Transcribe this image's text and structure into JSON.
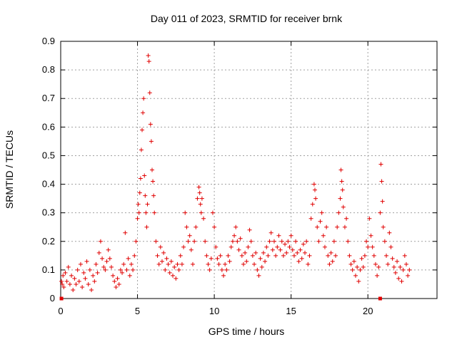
{
  "chart_data": {
    "type": "scatter",
    "title": "Day 011 of 2023, SRMTID for receiver brnk",
    "xlabel": "GPS time / hours",
    "ylabel": "SRMTID / TECUs",
    "xlim": [
      0,
      24.5
    ],
    "ylim": [
      0,
      0.9
    ],
    "xticks": [
      0,
      5,
      10,
      15,
      20
    ],
    "yticks": [
      0,
      0.1,
      0.2,
      0.3,
      0.4,
      0.5,
      0.6,
      0.7,
      0.8,
      0.9
    ],
    "xtick_labels": [
      "0",
      "5",
      "10",
      "15",
      "20"
    ],
    "ytick_labels": [
      "0",
      "0.1",
      "0.2",
      "0.3",
      "0.4",
      "0.5",
      "0.6",
      "0.7",
      "0.8",
      "0.9"
    ],
    "grid": true,
    "marker": "plus",
    "color": "#e00000",
    "baseline_markers_x": [
      0.05,
      20.8
    ],
    "series": [
      {
        "name": "SRMTID",
        "points": [
          [
            0.05,
            0.06
          ],
          [
            0.1,
            0.05
          ],
          [
            0.15,
            0.08
          ],
          [
            0.2,
            0.04
          ],
          [
            0.3,
            0.09
          ],
          [
            0.4,
            0.06
          ],
          [
            0.5,
            0.11
          ],
          [
            0.6,
            0.05
          ],
          [
            0.7,
            0.08
          ],
          [
            0.8,
            0.03
          ],
          [
            0.9,
            0.07
          ],
          [
            1.0,
            0.05
          ],
          [
            1.1,
            0.1
          ],
          [
            1.2,
            0.06
          ],
          [
            1.3,
            0.12
          ],
          [
            1.4,
            0.04
          ],
          [
            1.5,
            0.09
          ],
          [
            1.6,
            0.07
          ],
          [
            1.7,
            0.13
          ],
          [
            1.8,
            0.05
          ],
          [
            1.9,
            0.1
          ],
          [
            2.0,
            0.03
          ],
          [
            2.1,
            0.08
          ],
          [
            2.2,
            0.06
          ],
          [
            2.3,
            0.12
          ],
          [
            2.4,
            0.09
          ],
          [
            2.5,
            0.16
          ],
          [
            2.6,
            0.2
          ],
          [
            2.7,
            0.14
          ],
          [
            2.8,
            0.11
          ],
          [
            2.9,
            0.1
          ],
          [
            3.0,
            0.13
          ],
          [
            3.1,
            0.17
          ],
          [
            3.2,
            0.14
          ],
          [
            3.3,
            0.11
          ],
          [
            3.4,
            0.08
          ],
          [
            3.5,
            0.06
          ],
          [
            3.6,
            0.04
          ],
          [
            3.7,
            0.07
          ],
          [
            3.8,
            0.05
          ],
          [
            3.9,
            0.1
          ],
          [
            4.0,
            0.09
          ],
          [
            4.1,
            0.12
          ],
          [
            4.2,
            0.23
          ],
          [
            4.3,
            0.1
          ],
          [
            4.4,
            0.14
          ],
          [
            4.5,
            0.08
          ],
          [
            4.6,
            0.12
          ],
          [
            4.7,
            0.1
          ],
          [
            4.8,
            0.15
          ],
          [
            4.9,
            0.2
          ],
          [
            5.0,
            0.28
          ],
          [
            5.05,
            0.33
          ],
          [
            5.1,
            0.3
          ],
          [
            5.15,
            0.37
          ],
          [
            5.2,
            0.42
          ],
          [
            5.25,
            0.52
          ],
          [
            5.3,
            0.59
          ],
          [
            5.35,
            0.65
          ],
          [
            5.4,
            0.7
          ],
          [
            5.45,
            0.43
          ],
          [
            5.5,
            0.36
          ],
          [
            5.55,
            0.3
          ],
          [
            5.6,
            0.25
          ],
          [
            5.65,
            0.33
          ],
          [
            5.7,
            0.85
          ],
          [
            5.75,
            0.83
          ],
          [
            5.8,
            0.72
          ],
          [
            5.85,
            0.61
          ],
          [
            5.9,
            0.55
          ],
          [
            5.95,
            0.45
          ],
          [
            6.0,
            0.41
          ],
          [
            6.05,
            0.36
          ],
          [
            6.1,
            0.3
          ],
          [
            6.2,
            0.2
          ],
          [
            6.3,
            0.15
          ],
          [
            6.4,
            0.12
          ],
          [
            6.5,
            0.18
          ],
          [
            6.6,
            0.13
          ],
          [
            6.7,
            0.16
          ],
          [
            6.8,
            0.1
          ],
          [
            6.9,
            0.14
          ],
          [
            7.0,
            0.12
          ],
          [
            7.1,
            0.09
          ],
          [
            7.2,
            0.13
          ],
          [
            7.3,
            0.08
          ],
          [
            7.4,
            0.11
          ],
          [
            7.5,
            0.07
          ],
          [
            7.6,
            0.12
          ],
          [
            7.7,
            0.1
          ],
          [
            7.8,
            0.15
          ],
          [
            7.9,
            0.12
          ],
          [
            8.0,
            0.18
          ],
          [
            8.1,
            0.3
          ],
          [
            8.2,
            0.25
          ],
          [
            8.3,
            0.2
          ],
          [
            8.4,
            0.22
          ],
          [
            8.5,
            0.17
          ],
          [
            8.6,
            0.12
          ],
          [
            8.7,
            0.2
          ],
          [
            8.8,
            0.25
          ],
          [
            8.9,
            0.35
          ],
          [
            9.0,
            0.39
          ],
          [
            9.05,
            0.37
          ],
          [
            9.1,
            0.33
          ],
          [
            9.15,
            0.3
          ],
          [
            9.2,
            0.35
          ],
          [
            9.3,
            0.28
          ],
          [
            9.4,
            0.2
          ],
          [
            9.5,
            0.15
          ],
          [
            9.6,
            0.12
          ],
          [
            9.7,
            0.1
          ],
          [
            9.8,
            0.14
          ],
          [
            9.9,
            0.3
          ],
          [
            10.0,
            0.25
          ],
          [
            10.1,
            0.18
          ],
          [
            10.2,
            0.14
          ],
          [
            10.3,
            0.12
          ],
          [
            10.4,
            0.15
          ],
          [
            10.5,
            0.1
          ],
          [
            10.6,
            0.08
          ],
          [
            10.7,
            0.12
          ],
          [
            10.8,
            0.1
          ],
          [
            10.9,
            0.15
          ],
          [
            11.0,
            0.13
          ],
          [
            11.1,
            0.18
          ],
          [
            11.2,
            0.2
          ],
          [
            11.3,
            0.22
          ],
          [
            11.4,
            0.25
          ],
          [
            11.5,
            0.2
          ],
          [
            11.6,
            0.17
          ],
          [
            11.7,
            0.21
          ],
          [
            11.8,
            0.15
          ],
          [
            11.9,
            0.12
          ],
          [
            12.0,
            0.16
          ],
          [
            12.1,
            0.13
          ],
          [
            12.2,
            0.18
          ],
          [
            12.3,
            0.24
          ],
          [
            12.4,
            0.2
          ],
          [
            12.5,
            0.15
          ],
          [
            12.6,
            0.12
          ],
          [
            12.7,
            0.16
          ],
          [
            12.8,
            0.1
          ],
          [
            12.9,
            0.08
          ],
          [
            13.0,
            0.14
          ],
          [
            13.1,
            0.11
          ],
          [
            13.2,
            0.16
          ],
          [
            13.3,
            0.13
          ],
          [
            13.4,
            0.18
          ],
          [
            13.5,
            0.15
          ],
          [
            13.6,
            0.2
          ],
          [
            13.7,
            0.23
          ],
          [
            13.8,
            0.17
          ],
          [
            13.9,
            0.2
          ],
          [
            14.0,
            0.15
          ],
          [
            14.1,
            0.18
          ],
          [
            14.2,
            0.22
          ],
          [
            14.3,
            0.17
          ],
          [
            14.4,
            0.2
          ],
          [
            14.5,
            0.15
          ],
          [
            14.6,
            0.19
          ],
          [
            14.7,
            0.16
          ],
          [
            14.8,
            0.2
          ],
          [
            14.9,
            0.18
          ],
          [
            15.0,
            0.22
          ],
          [
            15.1,
            0.17
          ],
          [
            15.2,
            0.15
          ],
          [
            15.3,
            0.2
          ],
          [
            15.4,
            0.16
          ],
          [
            15.5,
            0.13
          ],
          [
            15.6,
            0.17
          ],
          [
            15.7,
            0.14
          ],
          [
            15.8,
            0.19
          ],
          [
            15.9,
            0.16
          ],
          [
            16.0,
            0.2
          ],
          [
            16.1,
            0.12
          ],
          [
            16.2,
            0.15
          ],
          [
            16.3,
            0.28
          ],
          [
            16.4,
            0.33
          ],
          [
            16.5,
            0.4
          ],
          [
            16.55,
            0.38
          ],
          [
            16.6,
            0.35
          ],
          [
            16.7,
            0.25
          ],
          [
            16.8,
            0.2
          ],
          [
            16.9,
            0.27
          ],
          [
            17.0,
            0.3
          ],
          [
            17.1,
            0.22
          ],
          [
            17.2,
            0.18
          ],
          [
            17.3,
            0.25
          ],
          [
            17.4,
            0.15
          ],
          [
            17.5,
            0.12
          ],
          [
            17.6,
            0.16
          ],
          [
            17.7,
            0.13
          ],
          [
            17.8,
            0.2
          ],
          [
            17.9,
            0.15
          ],
          [
            18.0,
            0.25
          ],
          [
            18.1,
            0.3
          ],
          [
            18.2,
            0.35
          ],
          [
            18.25,
            0.45
          ],
          [
            18.3,
            0.41
          ],
          [
            18.35,
            0.38
          ],
          [
            18.4,
            0.32
          ],
          [
            18.5,
            0.25
          ],
          [
            18.6,
            0.28
          ],
          [
            18.7,
            0.2
          ],
          [
            18.8,
            0.15
          ],
          [
            18.9,
            0.12
          ],
          [
            19.0,
            0.1
          ],
          [
            19.1,
            0.13
          ],
          [
            19.2,
            0.08
          ],
          [
            19.3,
            0.11
          ],
          [
            19.4,
            0.06
          ],
          [
            19.5,
            0.1
          ],
          [
            19.6,
            0.14
          ],
          [
            19.7,
            0.11
          ],
          [
            19.8,
            0.15
          ],
          [
            19.9,
            0.2
          ],
          [
            20.0,
            0.18
          ],
          [
            20.1,
            0.28
          ],
          [
            20.2,
            0.22
          ],
          [
            20.3,
            0.18
          ],
          [
            20.4,
            0.15
          ],
          [
            20.5,
            0.12
          ],
          [
            20.6,
            0.08
          ],
          [
            20.7,
            0.11
          ],
          [
            20.8,
            0.3
          ],
          [
            20.85,
            0.47
          ],
          [
            20.9,
            0.41
          ],
          [
            20.95,
            0.34
          ],
          [
            21.0,
            0.25
          ],
          [
            21.1,
            0.2
          ],
          [
            21.2,
            0.15
          ],
          [
            21.3,
            0.12
          ],
          [
            21.4,
            0.23
          ],
          [
            21.5,
            0.18
          ],
          [
            21.6,
            0.14
          ],
          [
            21.7,
            0.11
          ],
          [
            21.8,
            0.09
          ],
          [
            21.9,
            0.13
          ],
          [
            22.0,
            0.07
          ],
          [
            22.1,
            0.11
          ],
          [
            22.2,
            0.06
          ],
          [
            22.3,
            0.1
          ],
          [
            22.4,
            0.15
          ],
          [
            22.5,
            0.12
          ],
          [
            22.6,
            0.08
          ],
          [
            22.7,
            0.1
          ]
        ]
      }
    ]
  }
}
